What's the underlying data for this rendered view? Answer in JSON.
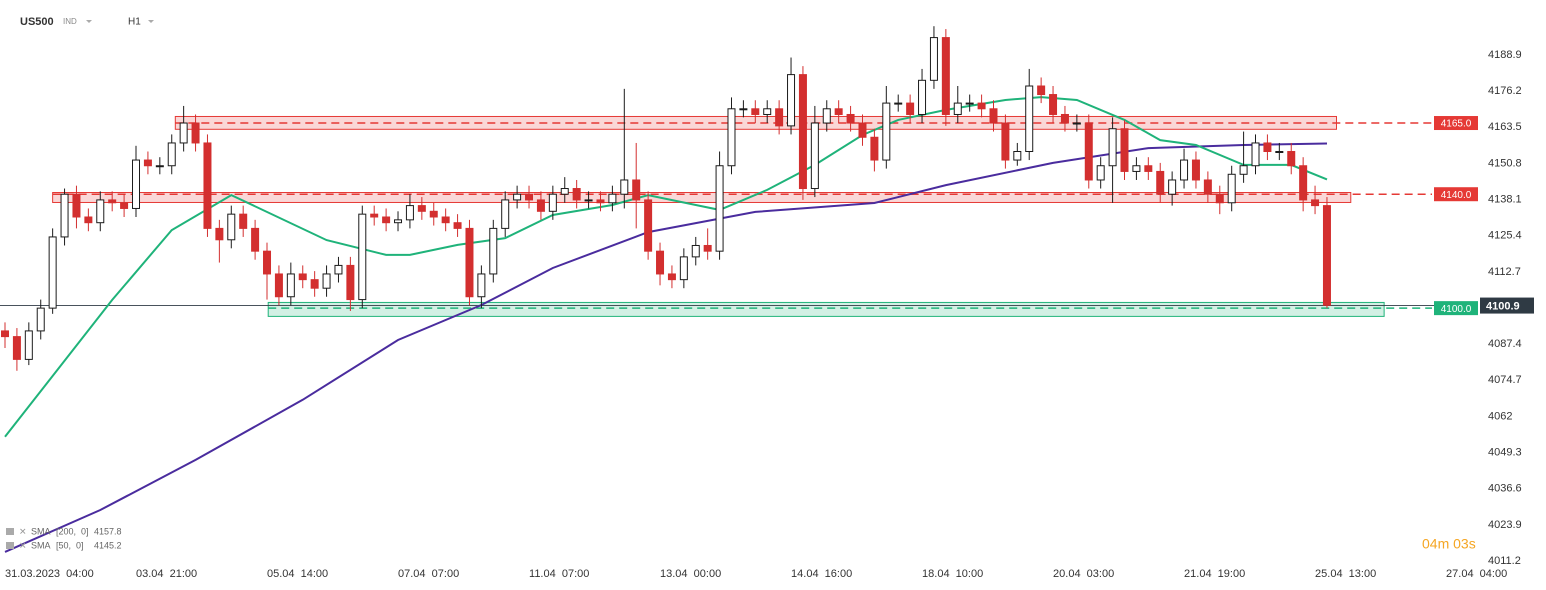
{
  "chart_data": {
    "type": "candlestick",
    "symbol": "US500",
    "instrument_type": "IND",
    "timeframe": "H1",
    "timer": "04m 03s",
    "colors": {
      "up": "#1b1b1b",
      "down": "#d32f2f"
    },
    "xlim": [
      -0.42,
      123.43
    ],
    "ylim": [
      4009.8,
      4208.2
    ],
    "yticks": [
      4188.9,
      4176.2,
      4163.5,
      4150.8,
      4138.1,
      4125.4,
      4112.7,
      4087.4,
      4074.7,
      4062.0,
      4049.3,
      4036.6,
      4023.9,
      4011.2
    ],
    "xticks": [
      {
        "value": 0,
        "label": "31.03.2023  04:00"
      },
      {
        "value": 11,
        "label": "03.04  21:00"
      },
      {
        "value": 22,
        "label": "05.04  14:00"
      },
      {
        "value": 33,
        "label": "07.04  07:00"
      },
      {
        "value": 44,
        "label": "11.04  07:00"
      },
      {
        "value": 55,
        "label": "13.04  00:00"
      },
      {
        "value": 66,
        "label": "14.04  16:00"
      },
      {
        "value": 77,
        "label": "18.04  10:00"
      },
      {
        "value": 88,
        "label": "20.04  03:00"
      },
      {
        "value": 99,
        "label": "21.04  19:00"
      },
      {
        "value": 110,
        "label": "25.04  13:00"
      },
      {
        "value": 121,
        "label": "27.04  04:00"
      }
    ],
    "open": [
      4092,
      4090,
      4082,
      4092,
      4100,
      4125,
      4140,
      4132,
      4130,
      4138,
      4137,
      4135,
      4152,
      4150,
      4150,
      4158,
      4165,
      4158,
      4128,
      4124,
      4133,
      4128,
      4120,
      4112,
      4104,
      4112,
      4110,
      4107,
      4112,
      4115,
      4103,
      4133,
      4132,
      4130,
      4131,
      4136,
      4134,
      4132,
      4130,
      4128,
      4104,
      4112,
      4128,
      4138,
      4140,
      4138,
      4134,
      4140,
      4142,
      4138,
      4138,
      4137,
      4140,
      4145,
      4138,
      4120,
      4112,
      4110,
      4118,
      4122,
      4120,
      4150,
      4170,
      4170,
      4168,
      4170,
      4164,
      4182,
      4142,
      4165,
      4170,
      4168,
      4165,
      4160,
      4152,
      4172,
      4172,
      4168,
      4180,
      4195,
      4168,
      4172,
      4172,
      4170,
      4165,
      4152,
      4155,
      4178,
      4175,
      4168,
      4165,
      4165,
      4145,
      4150,
      4163,
      4148,
      4150,
      4148,
      4140,
      4145,
      4152,
      4145,
      4140,
      4137,
      4147,
      4150,
      4158,
      4155,
      4155,
      4150,
      4138,
      4136
    ],
    "high": [
      4095,
      4093,
      4095,
      4103,
      4128,
      4142,
      4143,
      4135,
      4141,
      4141,
      4140,
      4157,
      4155,
      4153,
      4161,
      4171,
      4168,
      4161,
      4131,
      4136,
      4136,
      4131,
      4123,
      4115,
      4116,
      4115,
      4113,
      4115,
      4118,
      4118,
      4136,
      4136,
      4135,
      4134,
      4140,
      4139,
      4137,
      4135,
      4133,
      4131,
      4115,
      4131,
      4141,
      4143,
      4143,
      4141,
      4143,
      4146,
      4145,
      4141,
      4141,
      4143,
      4177,
      4158,
      4141,
      4123,
      4115,
      4121,
      4125,
      4128,
      4155,
      4174,
      4173,
      4173,
      4173,
      4173,
      4188,
      4185,
      4171,
      4173,
      4173,
      4171,
      4168,
      4163,
      4178,
      4175,
      4175,
      4184,
      4199,
      4198,
      4178,
      4175,
      4175,
      4173,
      4168,
      4158,
      4184,
      4181,
      4178,
      4171,
      4168,
      4168,
      4153,
      4167,
      4166,
      4153,
      4153,
      4151,
      4148,
      4156,
      4155,
      4148,
      4143,
      4150,
      4162,
      4161,
      4161,
      4158,
      4158,
      4153,
      4143,
      4139
    ],
    "low": [
      4086,
      4078,
      4080,
      4089,
      4098,
      4122,
      4128,
      4127,
      4127,
      4134,
      4132,
      4132,
      4147,
      4147,
      4147,
      4155,
      4155,
      4125,
      4116,
      4121,
      4125,
      4117,
      4103,
      4101,
      4101,
      4107,
      4104,
      4104,
      4109,
      4099,
      4100,
      4129,
      4127,
      4127,
      4128,
      4131,
      4129,
      4127,
      4125,
      4101,
      4100,
      4109,
      4125,
      4135,
      4135,
      4131,
      4131,
      4137,
      4135,
      4135,
      4134,
      4134,
      4135,
      4128,
      4117,
      4108,
      4107,
      4107,
      4115,
      4117,
      4117,
      4147,
      4167,
      4165,
      4165,
      4161,
      4161,
      4138,
      4139,
      4162,
      4165,
      4162,
      4157,
      4148,
      4149,
      4169,
      4165,
      4165,
      4177,
      4164,
      4165,
      4169,
      4167,
      4162,
      4149,
      4150,
      4152,
      4172,
      4165,
      4162,
      4162,
      4142,
      4142,
      4137,
      4145,
      4145,
      4145,
      4137,
      4136,
      4142,
      4142,
      4137,
      4133,
      4134,
      4144,
      4147,
      4152,
      4152,
      4147,
      4134,
      4133,
      4100
    ],
    "close": [
      4090,
      4082,
      4092,
      4100,
      4125,
      4140,
      4132,
      4130,
      4138,
      4137,
      4135,
      4152,
      4150,
      4150,
      4158,
      4165,
      4158,
      4128,
      4124,
      4133,
      4128,
      4120,
      4112,
      4104,
      4112,
      4110,
      4107,
      4112,
      4115,
      4103,
      4133,
      4132,
      4130,
      4131,
      4136,
      4134,
      4132,
      4130,
      4128,
      4104,
      4112,
      4128,
      4138,
      4140,
      4138,
      4134,
      4140,
      4142,
      4138,
      4138,
      4137,
      4140,
      4145,
      4138,
      4120,
      4112,
      4110,
      4118,
      4122,
      4120,
      4150,
      4170,
      4170,
      4168,
      4170,
      4164,
      4182,
      4142,
      4165,
      4170,
      4168,
      4165,
      4160,
      4152,
      4172,
      4172,
      4168,
      4180,
      4195,
      4168,
      4172,
      4172,
      4170,
      4165,
      4152,
      4155,
      4178,
      4175,
      4168,
      4165,
      4165,
      4145,
      4150,
      4163,
      4148,
      4150,
      4148,
      4140,
      4145,
      4152,
      4145,
      4140,
      4137,
      4147,
      4150,
      4158,
      4155,
      4155,
      4150,
      4138,
      4136,
      4101
    ],
    "series": [
      {
        "name": "SMA",
        "params": "[200,  0]",
        "last_value": 4157.8,
        "color": "#4a2c9e",
        "x": [
          0,
          8,
          16,
          25,
          33,
          40,
          46,
          54,
          63,
          73,
          79,
          88,
          96,
          104,
          111
        ],
        "values": [
          4014.4,
          4029.1,
          4046.7,
          4067.8,
          4088.8,
          4101.1,
          4114.1,
          4126.7,
          4133.8,
          4136.9,
          4143.2,
          4151.0,
          4156.2,
          4157.3,
          4157.8
        ]
      },
      {
        "name": "SMA",
        "params": "[50,  0]",
        "last_value": 4145.2,
        "color": "#1fb37a",
        "x": [
          0,
          9,
          14,
          19,
          27,
          32,
          34,
          38,
          42,
          46,
          51,
          54,
          58,
          60,
          64,
          68,
          72,
          75,
          79,
          84,
          87,
          90,
          94,
          97,
          100,
          104,
          108,
          111
        ],
        "values": [
          4054.8,
          4102.9,
          4127.4,
          4139.7,
          4123.9,
          4118.7,
          4118.7,
          4122.2,
          4124.6,
          4132.7,
          4136.2,
          4139.7,
          4136.2,
          4134.5,
          4141.5,
          4150.3,
          4160.8,
          4166.1,
          4169.6,
          4173.1,
          4174.1,
          4173.1,
          4166.1,
          4159.0,
          4157.3,
          4150.3,
          4150.3,
          4145.2
        ]
      }
    ],
    "zones": [
      {
        "low": 4162.8,
        "high": 4167.3,
        "start": 14.3,
        "end": 111.8,
        "color": "#e53935"
      },
      {
        "low": 4137.1,
        "high": 4140.6,
        "start": 4.0,
        "end": 113.0,
        "color": "#e53935"
      },
      {
        "low": 4097.1,
        "high": 4102.0,
        "start": 22.1,
        "end": 115.8,
        "color": "#1fb37a"
      }
    ],
    "levels": [
      {
        "value": 4165.0,
        "label": "4165.0",
        "color": "#e53935"
      },
      {
        "value": 4140.0,
        "label": "4140.0",
        "color": "#e53935"
      },
      {
        "value": 4100.0,
        "label": "4100.0",
        "color": "#1fb37a"
      }
    ],
    "current_price": 4100.9
  }
}
